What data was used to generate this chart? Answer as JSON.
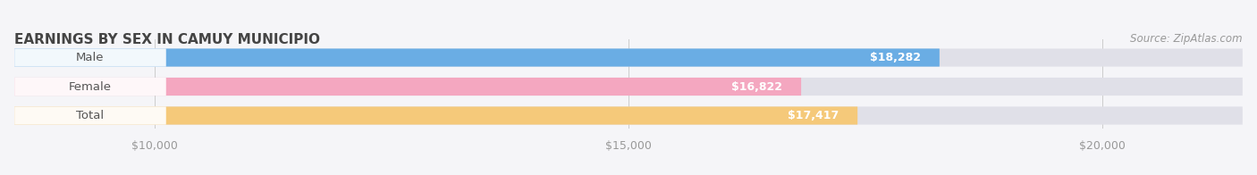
{
  "title": "EARNINGS BY SEX IN CAMUY MUNICIPIO",
  "source": "Source: ZipAtlas.com",
  "categories": [
    "Male",
    "Female",
    "Total"
  ],
  "values": [
    18282,
    16822,
    17417
  ],
  "bar_colors": [
    "#6aade4",
    "#f4a7c0",
    "#f5c97a"
  ],
  "bar_bg_color": "#e0e0e8",
  "value_labels": [
    "$18,282",
    "$16,822",
    "$17,417"
  ],
  "tick_labels": [
    "$10,000",
    "$15,000",
    "$20,000"
  ],
  "tick_values": [
    10000,
    15000,
    20000
  ],
  "xmin": 8500,
  "xmax": 21500,
  "title_fontsize": 11,
  "bar_label_fontsize": 9.5,
  "value_fontsize": 9,
  "tick_fontsize": 9,
  "source_fontsize": 8.5,
  "title_color": "#444444",
  "value_text_color": "#ffffff",
  "category_text_color": "#555555",
  "tick_text_color": "#999999",
  "source_color": "#999999",
  "background_color": "#f5f5f8"
}
